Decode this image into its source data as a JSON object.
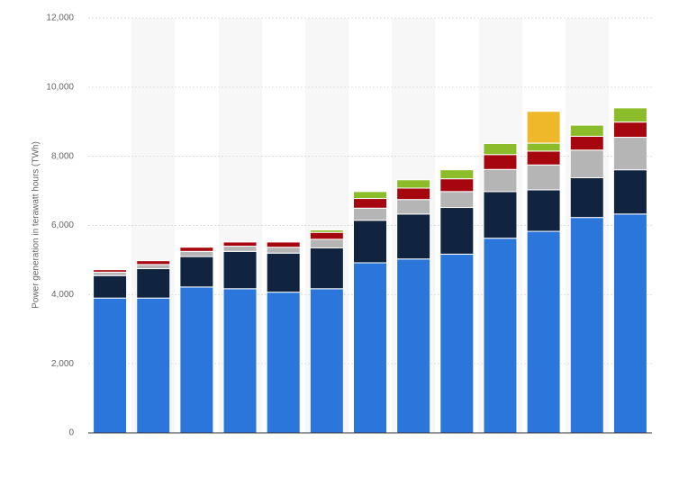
{
  "chart_data": {
    "type": "stacked_bar",
    "y_label": "Power generation in terawatt hours (TWh)",
    "categories": [
      null,
      null,
      null,
      null,
      null,
      null,
      null,
      null,
      null,
      null,
      null,
      null,
      null
    ],
    "series": [
      {
        "color": "#2a76db",
        "values": [
          3900,
          3900,
          4220,
          4170,
          4070,
          4170,
          4920,
          5030,
          5170,
          5630,
          5830,
          6230,
          6330
        ]
      },
      {
        "color": "#10243f",
        "values": [
          650,
          850,
          880,
          1080,
          1130,
          1180,
          1230,
          1300,
          1350,
          1350,
          1200,
          1150,
          1280
        ]
      },
      {
        "color": "#b5b5b5",
        "values": [
          100,
          120,
          150,
          150,
          170,
          250,
          350,
          420,
          460,
          640,
          720,
          800,
          940
        ]
      },
      {
        "color": "#a6070f",
        "values": [
          70,
          110,
          120,
          120,
          150,
          200,
          280,
          330,
          370,
          430,
          400,
          400,
          440
        ]
      },
      {
        "color": "#8bbd2a",
        "values": [
          0,
          0,
          0,
          0,
          0,
          70,
          200,
          240,
          260,
          320,
          230,
          320,
          410
        ]
      },
      {
        "color": "#efb82a",
        "values": [
          0,
          0,
          0,
          0,
          0,
          0,
          0,
          0,
          0,
          0,
          920,
          0,
          0
        ]
      }
    ],
    "ylim": [
      0,
      12000
    ],
    "yticks": [
      0,
      {
        "value": 2000,
        "label": "2,000"
      },
      {
        "value": 4000,
        "label": "4,000"
      },
      {
        "value": 6000,
        "label": "6,000"
      },
      {
        "value": 8000,
        "label": "8,000"
      },
      {
        "value": 10000,
        "label": "10,000"
      },
      {
        "value": 12000,
        "label": "12,000"
      }
    ],
    "grid": true
  }
}
